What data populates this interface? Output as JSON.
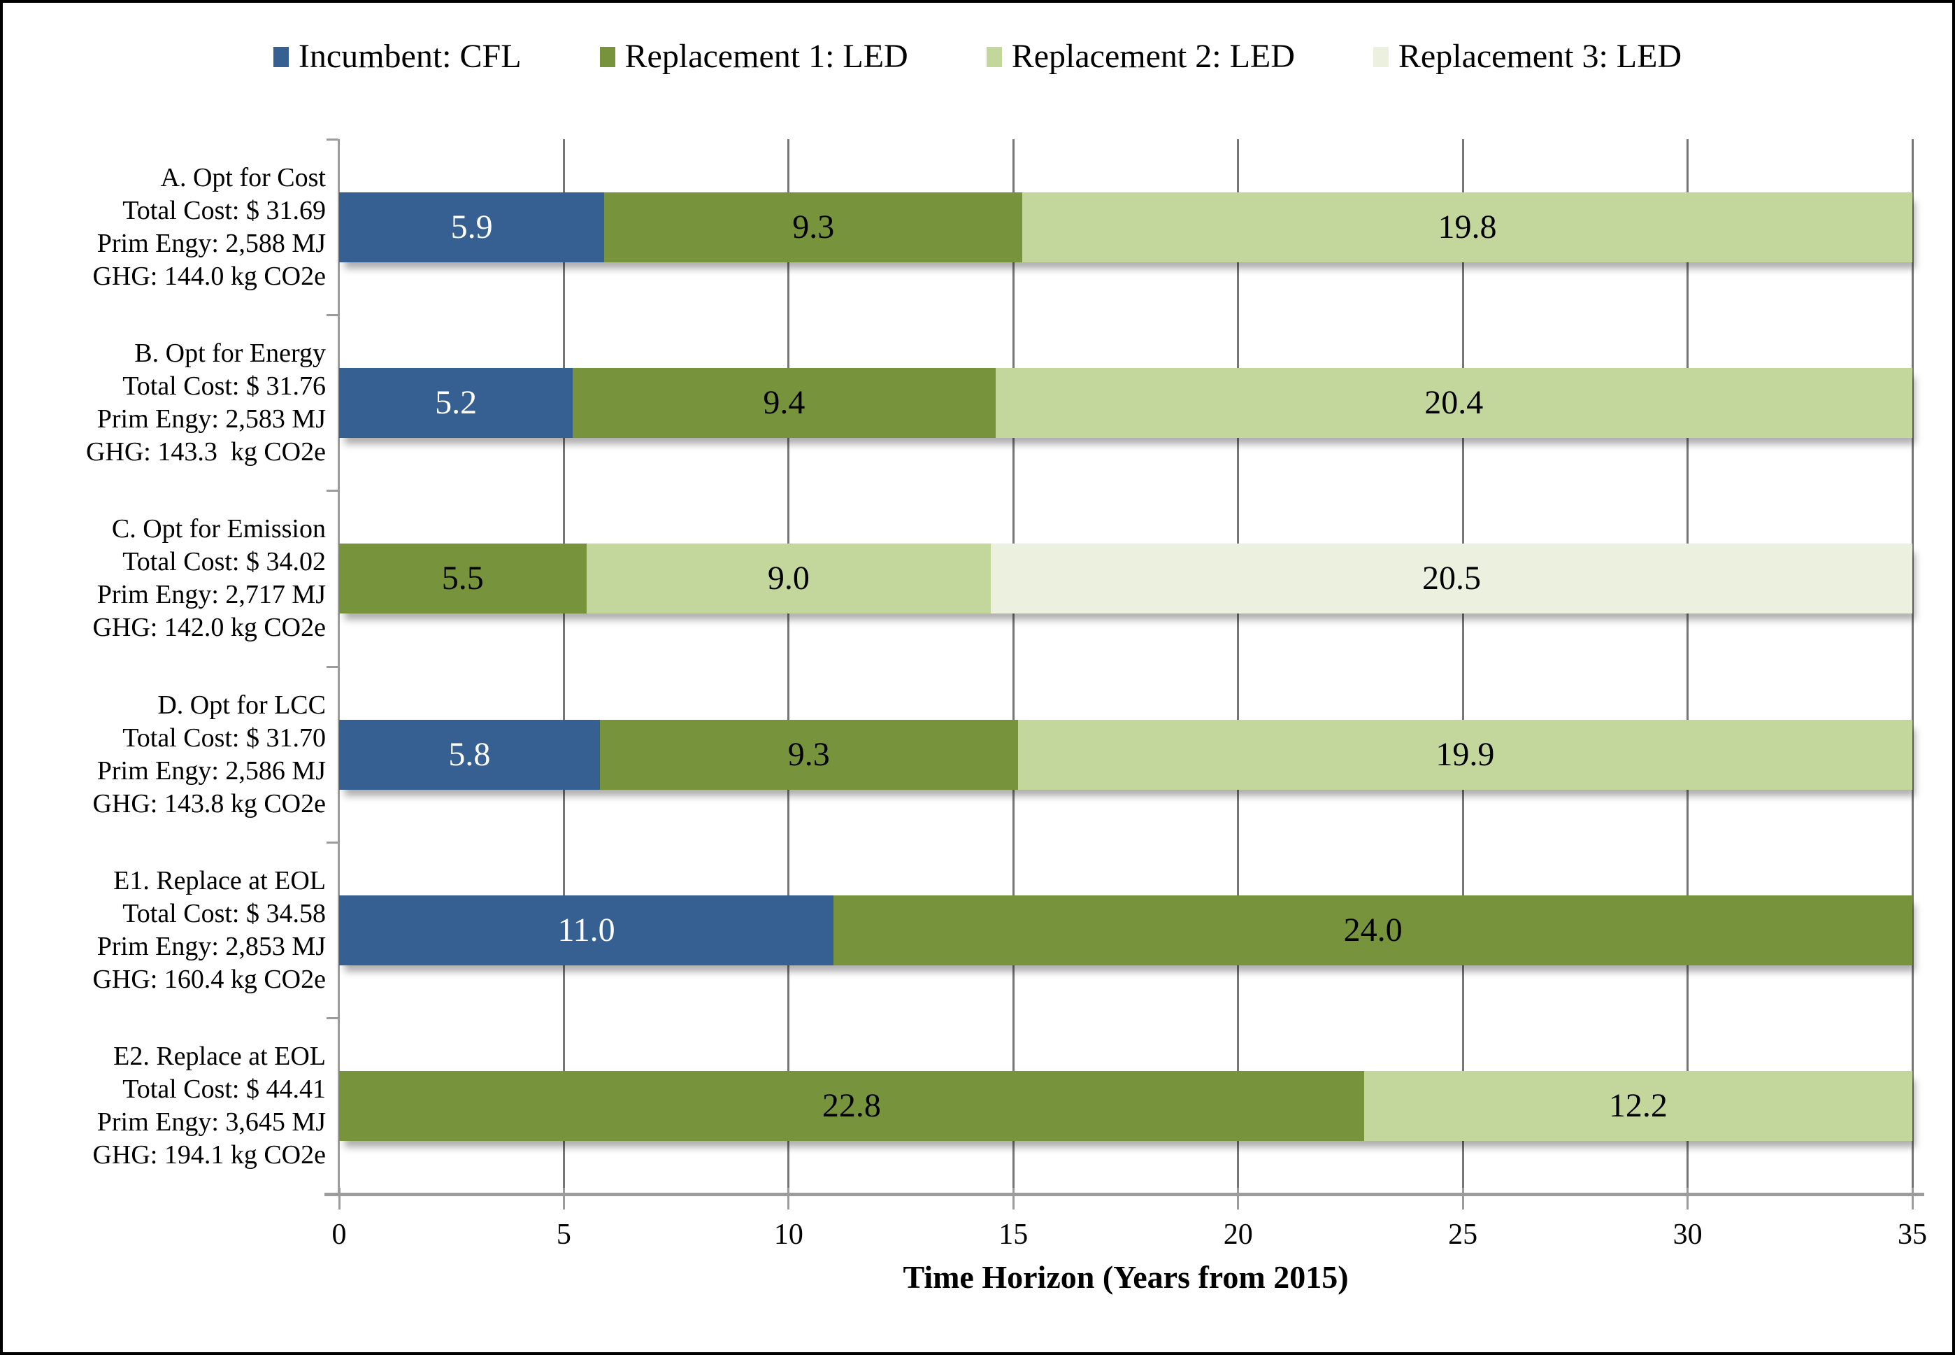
{
  "legend": {
    "items": [
      {
        "label": "Incumbent: CFL",
        "color": "#376092"
      },
      {
        "label": "Replacement 1: LED",
        "color": "#77933C"
      },
      {
        "label": "Replacement 2: LED",
        "color": "#C3D69B"
      },
      {
        "label": "Replacement 3: LED",
        "color": "#EBF1DE"
      }
    ]
  },
  "chart_data": {
    "type": "bar",
    "orientation": "horizontal",
    "stacked": true,
    "title": "",
    "xlabel": "Time Horizon (Years from 2015)",
    "ylabel": "",
    "xlim": [
      0,
      35
    ],
    "x_ticks": [
      0,
      5,
      10,
      15,
      20,
      25,
      30,
      35
    ],
    "grid": true,
    "legend_position": "top",
    "series_names": [
      "Incumbent: CFL",
      "Replacement 1: LED",
      "Replacement 2: LED",
      "Replacement 3: LED"
    ],
    "categories": [
      {
        "label_lines": [
          "A. Opt for Cost",
          "Total Cost: $ 31.69",
          "Prim Engy: 2,588 MJ",
          "GHG: 144.0 kg CO2e"
        ],
        "segments": [
          {
            "series": "Incumbent: CFL",
            "value": 5.9
          },
          {
            "series": "Replacement 1: LED",
            "value": 9.3
          },
          {
            "series": "Replacement 2: LED",
            "value": 19.8
          }
        ]
      },
      {
        "label_lines": [
          "B. Opt for Energy",
          "Total Cost: $ 31.76",
          "Prim Engy: 2,583 MJ",
          "GHG: 143.3  kg CO2e"
        ],
        "segments": [
          {
            "series": "Incumbent: CFL",
            "value": 5.2
          },
          {
            "series": "Replacement 1: LED",
            "value": 9.4
          },
          {
            "series": "Replacement 2: LED",
            "value": 20.4
          }
        ]
      },
      {
        "label_lines": [
          "C. Opt for Emission",
          "Total Cost: $ 34.02",
          "Prim Engy: 2,717 MJ",
          "GHG: 142.0 kg CO2e"
        ],
        "segments": [
          {
            "series": "Replacement 1: LED",
            "value": 5.5
          },
          {
            "series": "Replacement 2: LED",
            "value": 9.0
          },
          {
            "series": "Replacement 3: LED",
            "value": 20.5
          }
        ]
      },
      {
        "label_lines": [
          "D. Opt for LCC",
          "Total Cost: $ 31.70",
          "Prim Engy: 2,586 MJ",
          "GHG: 143.8 kg CO2e"
        ],
        "segments": [
          {
            "series": "Incumbent: CFL",
            "value": 5.8
          },
          {
            "series": "Replacement 1: LED",
            "value": 9.3
          },
          {
            "series": "Replacement 2: LED",
            "value": 19.9
          }
        ]
      },
      {
        "label_lines": [
          "E1. Replace at EOL",
          "Total Cost: $ 34.58",
          "Prim Engy: 2,853 MJ",
          "GHG: 160.4 kg CO2e"
        ],
        "segments": [
          {
            "series": "Incumbent: CFL",
            "value": 11.0
          },
          {
            "series": "Replacement 1: LED",
            "value": 24.0
          }
        ]
      },
      {
        "label_lines": [
          "E2. Replace at EOL",
          "Total Cost: $ 44.41",
          "Prim Engy: 3,645 MJ",
          "GHG: 194.1 kg CO2e"
        ],
        "segments": [
          {
            "series": "Replacement 1: LED",
            "value": 22.8
          },
          {
            "series": "Replacement 2: LED",
            "value": 12.2
          }
        ]
      }
    ]
  },
  "colors": {
    "series": {
      "Incumbent: CFL": {
        "fill": "#376092",
        "label": "#FFFFFF"
      },
      "Replacement 1: LED": {
        "fill": "#77933C",
        "label": "#000000"
      },
      "Replacement 2: LED": {
        "fill": "#C3D69B",
        "label": "#000000"
      },
      "Replacement 3: LED": {
        "fill": "#EBF1DE",
        "label": "#000000"
      }
    },
    "gridline": "#767676",
    "axis": "#9C9C9C",
    "text": "#000000",
    "background": "#FFFFFF",
    "border": "#000000"
  }
}
